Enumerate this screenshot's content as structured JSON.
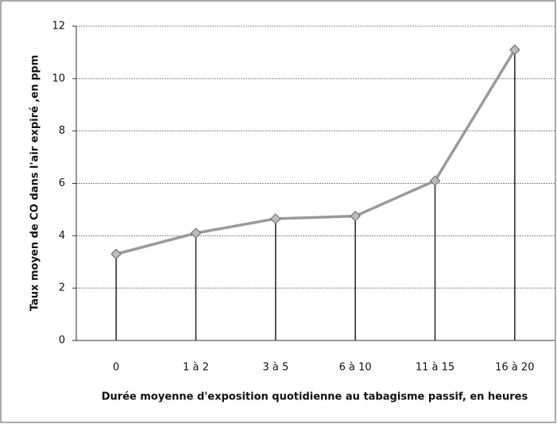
{
  "chart_data": {
    "type": "line",
    "xlabel": "Durée moyenne d'exposition quotidienne au tabagisme passif, en heures",
    "ylabel": "Taux moyen de CO dans l'air expiré ,en ppm",
    "categories": [
      "0",
      "1 à 2",
      "3 à 5",
      "6 à 10",
      "11 à 15",
      "16 à 20"
    ],
    "series": [
      {
        "name": null,
        "color": "#9a9a9a",
        "values": [
          3.3,
          4.1,
          4.65,
          4.75,
          6.1,
          11.1
        ]
      }
    ],
    "ylim": [
      0,
      12
    ],
    "yticks": [
      0,
      2,
      4,
      6,
      8,
      10,
      12
    ],
    "grid": true,
    "drop_lines": true
  }
}
